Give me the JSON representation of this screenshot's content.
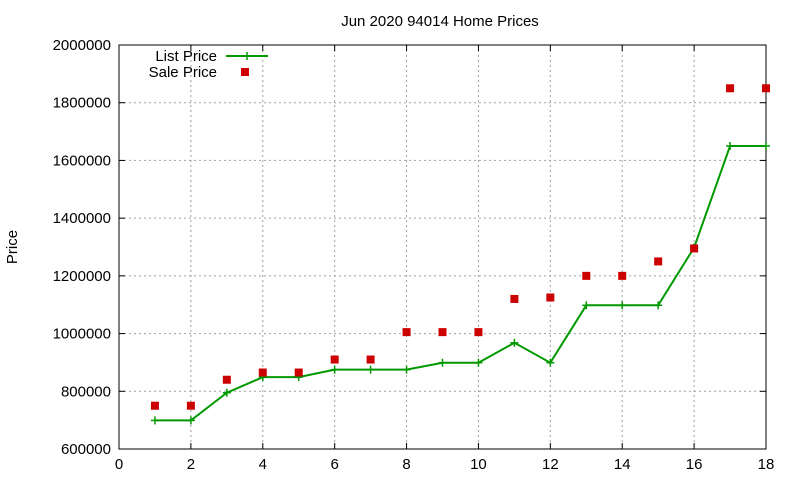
{
  "chart_data": {
    "type": "line",
    "title": "Jun 2020 94014 Home Prices",
    "xlabel": "",
    "ylabel": "Price",
    "xlim": [
      0,
      18
    ],
    "ylim": [
      600000,
      2000000
    ],
    "xticks": [
      0,
      2,
      4,
      6,
      8,
      10,
      12,
      14,
      16,
      18
    ],
    "yticks": [
      600000,
      800000,
      1000000,
      1200000,
      1400000,
      1600000,
      1800000,
      2000000
    ],
    "grid": true,
    "legend_position": "top-left",
    "series": [
      {
        "name": "List Price",
        "style": "line-with-plus-markers",
        "color": "#009900",
        "x": [
          1,
          2,
          3,
          4,
          5,
          6,
          7,
          8,
          9,
          10,
          11,
          12,
          13,
          14,
          15,
          16,
          17,
          18
        ],
        "values": [
          699000,
          699000,
          795000,
          849000,
          849000,
          875000,
          875000,
          875000,
          899000,
          899000,
          968000,
          899000,
          1098000,
          1098000,
          1098000,
          1298000,
          1650000,
          1650000
        ]
      },
      {
        "name": "Sale Price",
        "style": "square-points",
        "color": "#cc0000",
        "x": [
          1,
          2,
          3,
          4,
          5,
          6,
          7,
          8,
          9,
          10,
          11,
          12,
          13,
          14,
          15,
          16,
          17,
          18
        ],
        "values": [
          750000,
          750000,
          840000,
          865000,
          865000,
          910000,
          910000,
          1005000,
          1005000,
          1005000,
          1120000,
          1125000,
          1200000,
          1200000,
          1250000,
          1295000,
          1850000,
          1850000
        ]
      }
    ]
  }
}
